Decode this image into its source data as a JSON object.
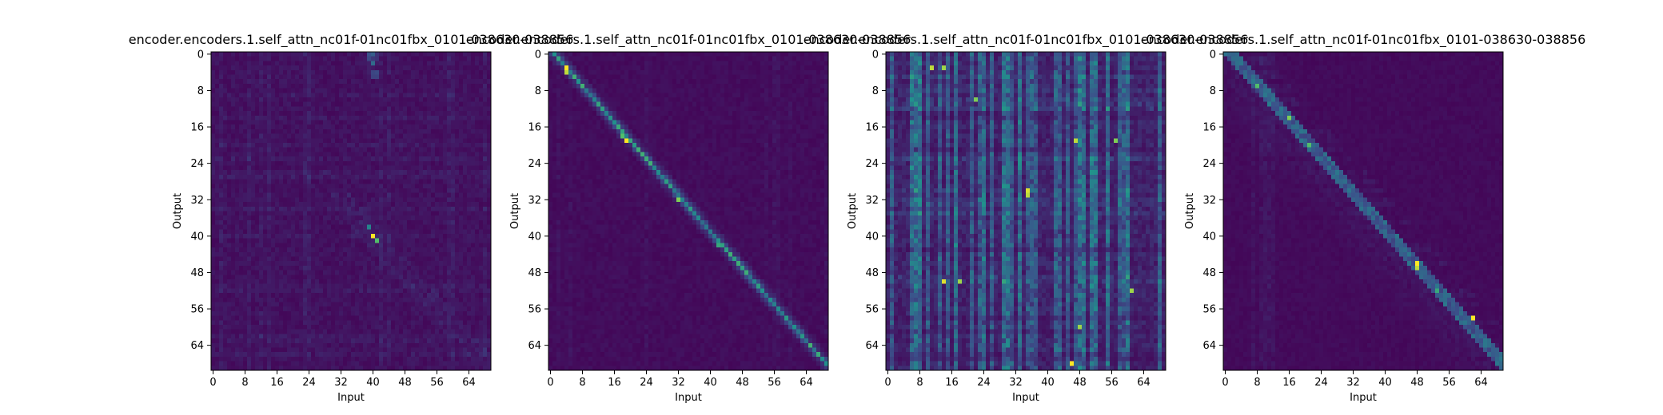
{
  "figure": {
    "panels": [
      {
        "title": "encoder.encoders.1.self_attn_nc01f-01nc01fbx_0101-038630-038856"
      },
      {
        "title": "encoder.encoders.1.self_attn_nc01f-01nc01fbx_0101-038630-038856"
      },
      {
        "title": "encoder.encoders.1.self_attn_nc01f-01nc01fbx_0101-038630-038856"
      },
      {
        "title": "encoder.encoders.1.self_attn_nc01f-01nc01fbx_0101-038630-038856"
      }
    ]
  },
  "chart_data": [
    {
      "type": "heatmap",
      "title": "encoder.encoders.1.self_attn_nc01f-01nc01fbx_0101-038630-038856",
      "xlabel": "Input",
      "ylabel": "Output",
      "xticks": [
        0,
        8,
        16,
        24,
        32,
        40,
        48,
        56,
        64
      ],
      "yticks": [
        0,
        8,
        16,
        24,
        32,
        40,
        48,
        56,
        64
      ],
      "x_range": [
        0,
        69
      ],
      "y_range": [
        0,
        69
      ],
      "pattern": "diffuse",
      "colormap": [
        "#440154",
        "#3b528b",
        "#21918c",
        "#5ec962",
        "#fde725"
      ],
      "peaks": [
        {
          "x": 40,
          "y": 40,
          "value": 1.0
        },
        {
          "x": 41,
          "y": 41,
          "value": 0.7
        },
        {
          "x": 39,
          "y": 38,
          "value": 0.45
        },
        {
          "x": 40,
          "y": 2,
          "value": 0.35
        },
        {
          "x": 40,
          "y": 0,
          "value": 0.3
        }
      ]
    },
    {
      "type": "heatmap",
      "title": "encoder.encoders.1.self_attn_nc01f-01nc01fbx_0101-038630-038856",
      "xlabel": "Input",
      "ylabel": "Output",
      "xticks": [
        0,
        8,
        16,
        24,
        32,
        40,
        48,
        56,
        64
      ],
      "yticks": [
        0,
        8,
        16,
        24,
        32,
        40,
        48,
        56,
        64
      ],
      "x_range": [
        0,
        69
      ],
      "y_range": [
        0,
        69
      ],
      "pattern": "diagonal",
      "colormap": [
        "#440154",
        "#3b528b",
        "#21918c",
        "#5ec962",
        "#fde725"
      ],
      "peaks": [
        {
          "x": 4,
          "y": 3,
          "value": 1.0
        },
        {
          "x": 4,
          "y": 4,
          "value": 0.9
        },
        {
          "x": 19,
          "y": 19,
          "value": 1.0
        },
        {
          "x": 18,
          "y": 18,
          "value": 0.7
        },
        {
          "x": 32,
          "y": 32,
          "value": 0.8
        },
        {
          "x": 42,
          "y": 42,
          "value": 0.6
        }
      ]
    },
    {
      "type": "heatmap",
      "title": "encoder.encoders.1.self_attn_nc01f-01nc01fbx_0101-038630-038856",
      "xlabel": "Input",
      "ylabel": "Output",
      "xticks": [
        0,
        8,
        16,
        24,
        32,
        40,
        48,
        56,
        64
      ],
      "yticks": [
        0,
        8,
        16,
        24,
        32,
        40,
        48,
        56,
        64
      ],
      "x_range": [
        0,
        69
      ],
      "y_range": [
        0,
        69
      ],
      "pattern": "columns",
      "colormap": [
        "#440154",
        "#3b528b",
        "#21918c",
        "#5ec962",
        "#fde725"
      ],
      "peaks": [
        {
          "x": 11,
          "y": 3,
          "value": 0.9
        },
        {
          "x": 14,
          "y": 3,
          "value": 0.85
        },
        {
          "x": 14,
          "y": 50,
          "value": 0.95
        },
        {
          "x": 18,
          "y": 50,
          "value": 0.85
        },
        {
          "x": 22,
          "y": 10,
          "value": 0.8
        },
        {
          "x": 35,
          "y": 30,
          "value": 0.95
        },
        {
          "x": 35,
          "y": 31,
          "value": 0.9
        },
        {
          "x": 47,
          "y": 19,
          "value": 0.9
        },
        {
          "x": 46,
          "y": 68,
          "value": 1.0
        },
        {
          "x": 48,
          "y": 60,
          "value": 0.85
        },
        {
          "x": 57,
          "y": 19,
          "value": 0.8
        },
        {
          "x": 61,
          "y": 52,
          "value": 0.85
        }
      ]
    },
    {
      "type": "heatmap",
      "title": "encoder.encoders.1.self_attn_nc01f-01nc01fbx_0101-038630-038856",
      "xlabel": "Input",
      "ylabel": "Output",
      "xticks": [
        0,
        8,
        16,
        24,
        32,
        40,
        48,
        56,
        64
      ],
      "yticks": [
        0,
        8,
        16,
        24,
        32,
        40,
        48,
        56,
        64
      ],
      "x_range": [
        0,
        69
      ],
      "y_range": [
        0,
        69
      ],
      "pattern": "diagonal-soft",
      "colormap": [
        "#440154",
        "#3b528b",
        "#21918c",
        "#5ec962",
        "#fde725"
      ],
      "peaks": [
        {
          "x": 8,
          "y": 7,
          "value": 0.7
        },
        {
          "x": 16,
          "y": 14,
          "value": 0.8
        },
        {
          "x": 21,
          "y": 20,
          "value": 0.7
        },
        {
          "x": 48,
          "y": 46,
          "value": 1.0
        },
        {
          "x": 48,
          "y": 47,
          "value": 0.9
        },
        {
          "x": 62,
          "y": 58,
          "value": 1.0
        },
        {
          "x": 53,
          "y": 52,
          "value": 0.6
        }
      ]
    }
  ]
}
